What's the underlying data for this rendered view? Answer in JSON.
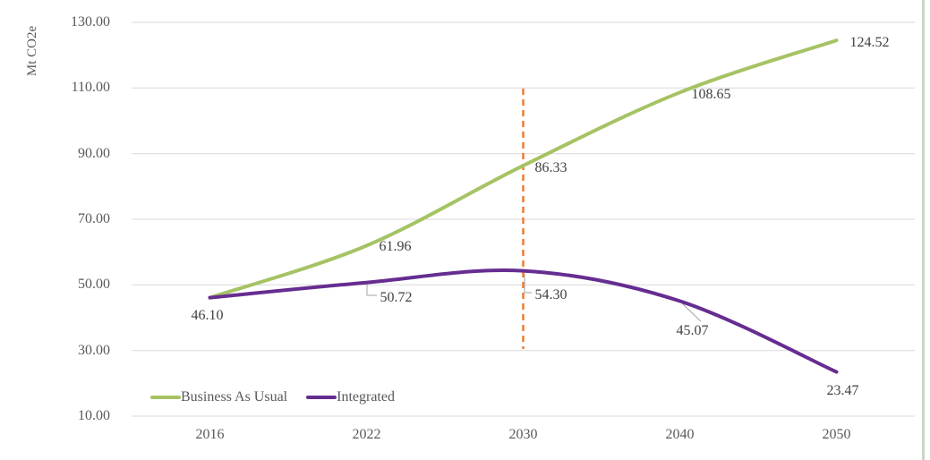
{
  "chart_data": {
    "type": "line",
    "title": "",
    "ylabel": "Mt CO2e",
    "xlabel": "",
    "categories": [
      "2016",
      "2022",
      "2030",
      "2040",
      "2050"
    ],
    "y_ticks": [
      "130.00",
      "110.00",
      "90.00",
      "70.00",
      "50.00",
      "30.00",
      "10.00"
    ],
    "ylim": [
      10,
      130
    ],
    "grid": true,
    "legend_position": "bottom-left",
    "series": [
      {
        "name": "Business As Usual",
        "color": "#A6C364",
        "values": [
          46.1,
          61.96,
          86.33,
          108.65,
          124.52
        ],
        "labels": [
          "46.10",
          "61.96",
          "86.33",
          "108.65",
          "124.52"
        ]
      },
      {
        "name": "Integrated",
        "color": "#662D91",
        "values": [
          46.1,
          50.72,
          54.3,
          45.07,
          23.47
        ],
        "labels": [
          "",
          "50.72",
          "54.30",
          "45.07",
          "23.47"
        ]
      }
    ],
    "annotations": [
      {
        "type": "vline",
        "at_category": "2030",
        "color": "#ED7D31",
        "style": "dashed"
      }
    ]
  },
  "colors": {
    "gridline": "#D9D9D9",
    "axis_text": "#595959",
    "data_label_text": "#404040",
    "leader_line": "#A6A6A6",
    "page_edge_strip": "#C9D6C9",
    "background": "#FFFFFF"
  }
}
